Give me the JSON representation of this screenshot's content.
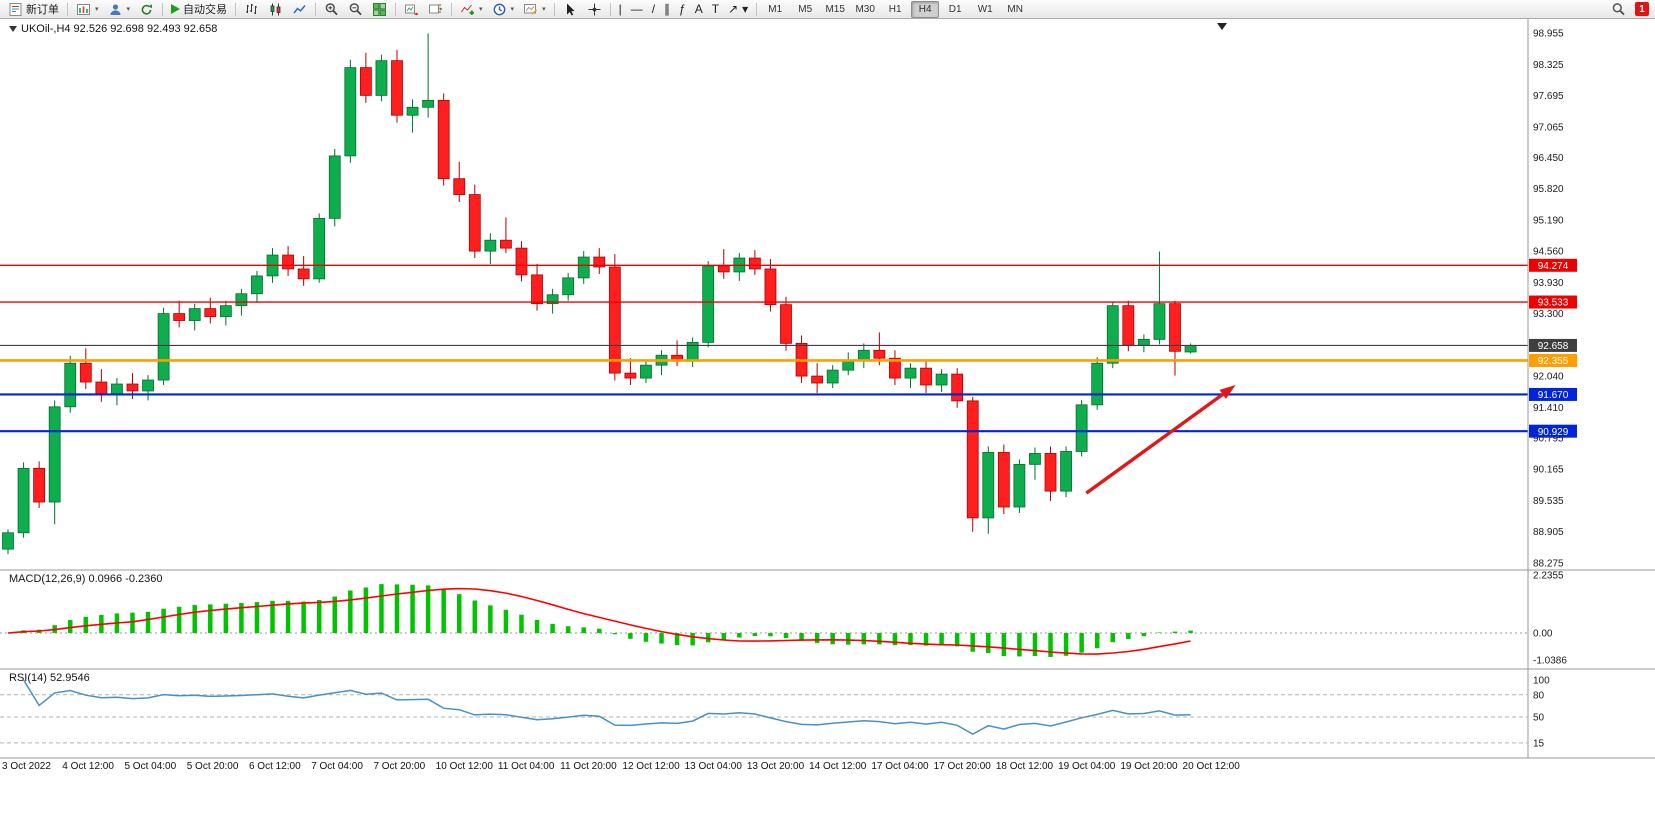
{
  "toolbar": {
    "new_order_label": "新订单",
    "autotrading_label": "自动交易",
    "draw_tools": [
      {
        "name": "vertical-line",
        "glyph": "|"
      },
      {
        "name": "horizontal-line",
        "glyph": "—"
      },
      {
        "name": "trendline",
        "glyph": "/"
      },
      {
        "name": "equidistant-channel",
        "glyph": "∥"
      },
      {
        "name": "fibonacci",
        "glyph": "ƒ"
      },
      {
        "name": "text",
        "glyph": "A"
      },
      {
        "name": "text-label",
        "glyph": "T"
      },
      {
        "name": "arrow-tool",
        "glyph": "↗"
      }
    ],
    "timeframes": [
      "M1",
      "M5",
      "M15",
      "M30",
      "H1",
      "H4",
      "D1",
      "W1",
      "MN"
    ],
    "active_timeframe": "H4",
    "notification_badge": "1"
  },
  "headers": {
    "chart": "UKOil-,H4 92.526 92.698 92.493 92.658",
    "macd": "MACD(12,26,9) 0.0966 -0.2360",
    "rsi": "RSI(14) 52.9546"
  },
  "colors": {
    "bull": "#0EAE4E",
    "bull_border": "#056D2F",
    "bear": "#FF1F1F",
    "bear_border": "#B00000",
    "macd_histogram": "#00C400",
    "macd_signal": "#FF0000",
    "rsi": "#4A90C4",
    "arrow": "#E01818",
    "axis_text": "#1C1C1C"
  },
  "chart_data": {
    "type": "candlestick",
    "symbol": "UKOil-",
    "timeframe": "H4",
    "last_ohlc": {
      "open": 92.526,
      "high": 92.698,
      "low": 92.493,
      "close": 92.658
    },
    "price_axis_labels": [
      "98.955",
      "98.325",
      "97.695",
      "97.065",
      "96.450",
      "95.820",
      "95.190",
      "94.560",
      "93.930",
      "93.300",
      "92.040",
      "91.410",
      "90.795",
      "90.165",
      "89.535",
      "88.905",
      "88.275"
    ],
    "price_range": {
      "min": 88.17,
      "max": 99.2
    },
    "levels": [
      {
        "price": 94.274,
        "label": "94.274",
        "color": "#EF0000",
        "width": 1.4
      },
      {
        "price": 93.533,
        "label": "93.533",
        "color": "#EF0000",
        "width": 1.4
      },
      {
        "price": 92.658,
        "label": "92.658",
        "color": "#3F3F3F",
        "width": 1.1
      },
      {
        "price": 92.355,
        "label": "92.355",
        "color": "#FF9E00",
        "width": 2.6
      },
      {
        "price": 91.67,
        "label": "91.670",
        "color": "#0023DC",
        "width": 2.2
      },
      {
        "price": 90.929,
        "label": "90.929",
        "color": "#0023DC",
        "width": 2.2
      }
    ],
    "x_labels": [
      [
        0,
        "3 Oct 2022"
      ],
      [
        4,
        "4 Oct 12:00"
      ],
      [
        8,
        "5 Oct 04:00"
      ],
      [
        12,
        "5 Oct 20:00"
      ],
      [
        16,
        "6 Oct 12:00"
      ],
      [
        20,
        "7 Oct 04:00"
      ],
      [
        24,
        "7 Oct 20:00"
      ],
      [
        28,
        "10 Oct 12:00"
      ],
      [
        32,
        "11 Oct 04:00"
      ],
      [
        36,
        "11 Oct 20:00"
      ],
      [
        40,
        "12 Oct 12:00"
      ],
      [
        44,
        "13 Oct 04:00"
      ],
      [
        48,
        "13 Oct 20:00"
      ],
      [
        52,
        "14 Oct 12:00"
      ],
      [
        56,
        "17 Oct 04:00"
      ],
      [
        60,
        "17 Oct 20:00"
      ],
      [
        64,
        "18 Oct 12:00"
      ],
      [
        68,
        "19 Oct 04:00"
      ],
      [
        72,
        "19 Oct 20:00"
      ],
      [
        76,
        "20 Oct 12:00"
      ]
    ],
    "candles": [
      [
        88.55,
        88.95,
        88.45,
        88.88
      ],
      [
        88.88,
        90.3,
        88.78,
        90.18
      ],
      [
        90.18,
        90.32,
        89.38,
        89.5
      ],
      [
        89.5,
        91.55,
        89.05,
        91.42
      ],
      [
        91.42,
        92.45,
        91.3,
        92.3
      ],
      [
        92.3,
        92.6,
        91.78,
        91.92
      ],
      [
        91.92,
        92.18,
        91.52,
        91.68
      ],
      [
        91.68,
        92.0,
        91.45,
        91.88
      ],
      [
        91.88,
        92.1,
        91.58,
        91.74
      ],
      [
        91.74,
        92.06,
        91.55,
        91.96
      ],
      [
        91.96,
        93.42,
        91.86,
        93.3
      ],
      [
        93.3,
        93.56,
        93.02,
        93.16
      ],
      [
        93.16,
        93.5,
        92.96,
        93.4
      ],
      [
        93.4,
        93.62,
        93.1,
        93.24
      ],
      [
        93.24,
        93.56,
        93.06,
        93.46
      ],
      [
        93.46,
        93.8,
        93.26,
        93.7
      ],
      [
        93.7,
        94.16,
        93.52,
        94.06
      ],
      [
        94.06,
        94.62,
        93.92,
        94.48
      ],
      [
        94.48,
        94.66,
        94.06,
        94.2
      ],
      [
        94.2,
        94.46,
        93.86,
        94.0
      ],
      [
        94.0,
        95.32,
        93.92,
        95.22
      ],
      [
        95.22,
        96.62,
        95.06,
        96.48
      ],
      [
        96.48,
        98.42,
        96.34,
        98.26
      ],
      [
        98.26,
        98.56,
        97.55,
        97.7
      ],
      [
        97.7,
        98.52,
        97.58,
        98.4
      ],
      [
        98.4,
        98.62,
        97.15,
        97.3
      ],
      [
        97.3,
        97.62,
        96.95,
        97.46
      ],
      [
        97.46,
        98.95,
        97.25,
        97.6
      ],
      [
        97.6,
        97.74,
        95.88,
        96.02
      ],
      [
        96.02,
        96.36,
        95.55,
        95.7
      ],
      [
        95.7,
        95.9,
        94.42,
        94.56
      ],
      [
        94.56,
        94.92,
        94.3,
        94.78
      ],
      [
        94.78,
        95.24,
        94.52,
        94.62
      ],
      [
        94.62,
        94.76,
        93.95,
        94.08
      ],
      [
        94.08,
        94.3,
        93.36,
        93.5
      ],
      [
        93.5,
        93.8,
        93.3,
        93.68
      ],
      [
        93.68,
        94.12,
        93.56,
        94.02
      ],
      [
        94.02,
        94.56,
        93.9,
        94.44
      ],
      [
        94.44,
        94.62,
        94.1,
        94.24
      ],
      [
        94.24,
        94.5,
        91.95,
        92.1
      ],
      [
        92.1,
        92.4,
        91.86,
        92.0
      ],
      [
        92.0,
        92.36,
        91.9,
        92.26
      ],
      [
        92.26,
        92.56,
        92.06,
        92.46
      ],
      [
        92.46,
        92.76,
        92.24,
        92.34
      ],
      [
        92.34,
        92.82,
        92.22,
        92.72
      ],
      [
        92.72,
        94.36,
        92.62,
        94.26
      ],
      [
        94.26,
        94.6,
        94.0,
        94.14
      ],
      [
        94.14,
        94.52,
        93.96,
        94.42
      ],
      [
        94.42,
        94.58,
        94.08,
        94.2
      ],
      [
        94.2,
        94.4,
        93.34,
        93.48
      ],
      [
        93.48,
        93.64,
        92.55,
        92.7
      ],
      [
        92.7,
        92.86,
        91.9,
        92.04
      ],
      [
        92.04,
        92.3,
        91.7,
        91.9
      ],
      [
        91.9,
        92.26,
        91.8,
        92.16
      ],
      [
        92.16,
        92.52,
        92.06,
        92.36
      ],
      [
        92.36,
        92.7,
        92.2,
        92.56
      ],
      [
        92.56,
        92.92,
        92.26,
        92.4
      ],
      [
        92.4,
        92.56,
        91.86,
        92.0
      ],
      [
        92.0,
        92.3,
        91.8,
        92.2
      ],
      [
        92.2,
        92.34,
        91.7,
        91.86
      ],
      [
        91.86,
        92.18,
        91.72,
        92.08
      ],
      [
        92.08,
        92.2,
        91.4,
        91.54
      ],
      [
        91.54,
        91.62,
        88.9,
        89.18
      ],
      [
        89.18,
        90.62,
        88.86,
        90.5
      ],
      [
        90.5,
        90.66,
        89.26,
        89.4
      ],
      [
        89.4,
        90.36,
        89.28,
        90.26
      ],
      [
        90.26,
        90.6,
        89.95,
        90.48
      ],
      [
        90.48,
        90.62,
        89.52,
        89.72
      ],
      [
        89.72,
        90.62,
        89.6,
        90.52
      ],
      [
        90.52,
        91.56,
        90.42,
        91.46
      ],
      [
        91.46,
        92.42,
        91.36,
        92.3
      ],
      [
        92.3,
        93.54,
        92.2,
        93.46
      ],
      [
        93.46,
        93.56,
        92.54,
        92.66
      ],
      [
        92.66,
        92.88,
        92.52,
        92.78
      ],
      [
        92.78,
        94.55,
        92.68,
        93.5
      ],
      [
        93.5,
        93.56,
        92.05,
        92.54
      ],
      [
        92.526,
        92.698,
        92.493,
        92.658
      ]
    ],
    "macd": {
      "label": "MACD(12,26,9)",
      "value_main": 0.0966,
      "value_signal": -0.236,
      "axis_labels": [
        "2.2355",
        "0.00",
        "-1.0386"
      ]
    },
    "rsi": {
      "label": "RSI(14)",
      "value": 52.9546,
      "axis_labels": [
        "100",
        "80",
        "50",
        "15"
      ],
      "levels": [
        80,
        50,
        15
      ]
    },
    "annotation_arrow": {
      "from_bar": 69.3,
      "from_price": 89.68,
      "to_bar": 78.9,
      "to_price": 91.86
    }
  }
}
